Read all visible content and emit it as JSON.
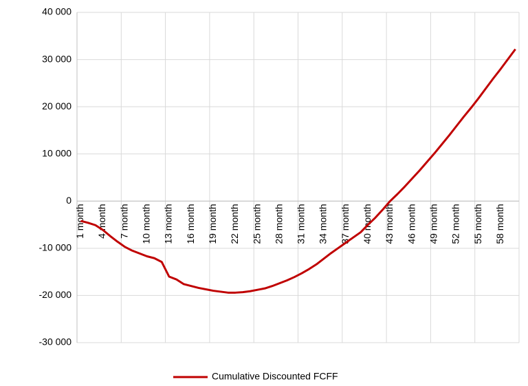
{
  "chart_data": {
    "type": "line",
    "categories": [
      "1 month",
      null,
      null,
      "4 month",
      null,
      null,
      "7 month",
      null,
      null,
      "10 month",
      null,
      null,
      "13 month",
      null,
      null,
      "16 month",
      null,
      null,
      "19 month",
      null,
      null,
      "22 month",
      null,
      null,
      "25 month",
      null,
      null,
      "28 month",
      null,
      null,
      "31 month",
      null,
      null,
      "34 month",
      null,
      null,
      "37 month",
      null,
      null,
      "40 month",
      null,
      null,
      "43 month",
      null,
      null,
      "46 month",
      null,
      null,
      "49 month",
      null,
      null,
      "52 month",
      null,
      null,
      "55 month",
      null,
      null,
      "58 month",
      null,
      null
    ],
    "series": [
      {
        "name": "Cumulative Discounted FCFF",
        "color": "#c00000",
        "values": [
          -4200,
          -4600,
          -5100,
          -6100,
          -7400,
          -8600,
          -9700,
          -10500,
          -11100,
          -11700,
          -12100,
          -12900,
          -16000,
          -16600,
          -17600,
          -18000,
          -18400,
          -18700,
          -19000,
          -19200,
          -19400,
          -19400,
          -19300,
          -19100,
          -18800,
          -18500,
          -18000,
          -17400,
          -16800,
          -16100,
          -15300,
          -14400,
          -13400,
          -12200,
          -11000,
          -9900,
          -8800,
          -7700,
          -6600,
          -5000,
          -3500,
          -1800,
          0,
          1500,
          3100,
          4800,
          6500,
          8300,
          10100,
          12000,
          13900,
          15900,
          17900,
          19800,
          21800,
          23900,
          26000,
          28000,
          30100,
          32200
        ]
      }
    ],
    "ylim": [
      -30000,
      40000
    ],
    "yticks": [
      {
        "value": -30000,
        "label": "-30 000"
      },
      {
        "value": -20000,
        "label": "-20 000"
      },
      {
        "value": -10000,
        "label": "-10 000"
      },
      0,
      {
        "value": 10000,
        "label": "10 000"
      },
      {
        "value": 20000,
        "label": "20 000"
      },
      {
        "value": 30000,
        "label": "30 000"
      },
      {
        "value": 40000,
        "label": "40 000"
      }
    ],
    "grid": true,
    "legend": "bottom"
  }
}
